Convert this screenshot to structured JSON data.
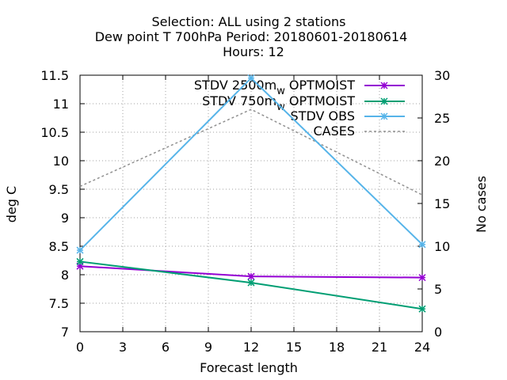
{
  "chart_data": {
    "type": "line",
    "title_lines": [
      "Selection: ALL using     2 stations",
      "Dew point T 700hPa   Period: 20180601-20180614",
      "Hours:  12"
    ],
    "xlabel": "Forecast length",
    "ylabel": "deg C",
    "y2label": "No cases",
    "xlim": [
      0,
      24
    ],
    "xticks": [
      "0",
      "3",
      "6",
      "9",
      "12",
      "15",
      "18",
      "21",
      "24"
    ],
    "ylim": [
      7,
      11.5
    ],
    "yticks": [
      "7",
      "7.5",
      "8",
      "8.5",
      "9",
      "9.5",
      "10",
      "10.5",
      "11",
      "11.5"
    ],
    "y2lim": [
      0,
      30
    ],
    "y2ticks": [
      "0",
      "5",
      "10",
      "15",
      "20",
      "25",
      "30"
    ],
    "grid": true,
    "legend_position": "top-right",
    "series": [
      {
        "name": "STDV 2500m_w OPTMOIST",
        "legend_parts": [
          "STDV 2500m",
          "w",
          " OPTMOIST"
        ],
        "color": "#9400d3",
        "axis": "y",
        "marker": "x",
        "dash": false,
        "points": [
          [
            0,
            8.15
          ],
          [
            12,
            7.97
          ],
          [
            24,
            7.95
          ]
        ]
      },
      {
        "name": "STDV 750m_w OPTMOIST",
        "legend_parts": [
          "STDV 750m",
          "w",
          " OPTMOIST"
        ],
        "color": "#009e73",
        "axis": "y",
        "marker": "x",
        "dash": false,
        "points": [
          [
            0,
            8.23
          ],
          [
            12,
            7.86
          ],
          [
            24,
            7.4
          ]
        ]
      },
      {
        "name": "STDV OBS",
        "legend_parts": [
          "STDV OBS"
        ],
        "color": "#56b4e9",
        "axis": "y",
        "marker": "x",
        "dash": false,
        "points": [
          [
            0,
            8.43
          ],
          [
            12,
            11.45
          ],
          [
            24,
            8.53
          ]
        ]
      },
      {
        "name": "CASES",
        "legend_parts": [
          "CASES"
        ],
        "color": "#909090",
        "axis": "y2",
        "marker": "none",
        "dash": true,
        "points": [
          [
            0,
            17
          ],
          [
            12,
            26
          ],
          [
            24,
            16
          ]
        ]
      }
    ]
  }
}
